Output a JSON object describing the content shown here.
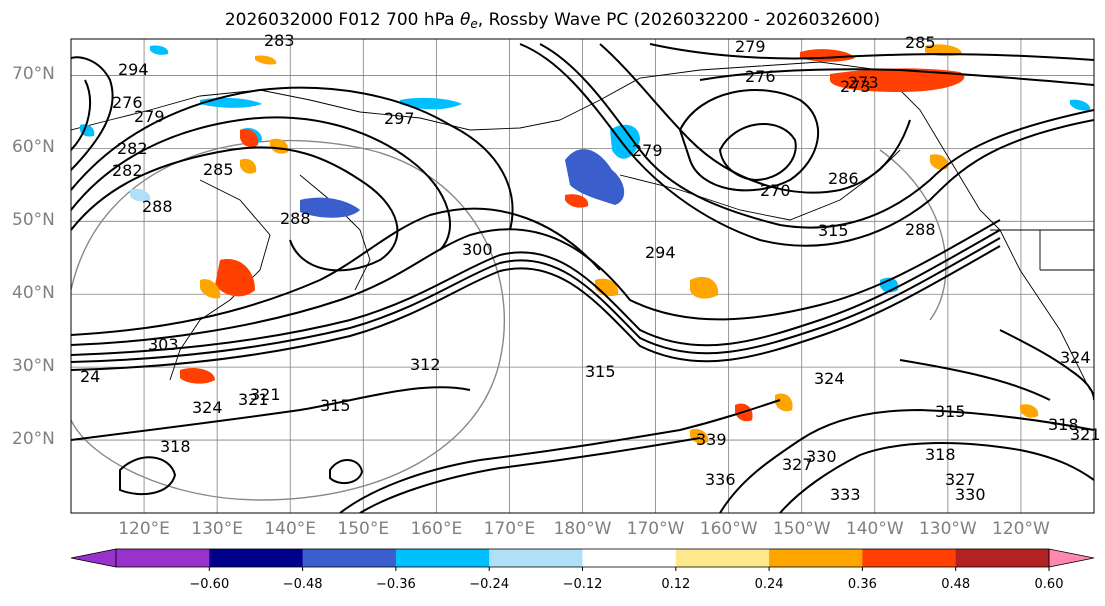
{
  "title": {
    "prefix": "2026032000 F012 700 hPa ",
    "symbol": "θ",
    "subscript": "e",
    "suffix": ", Rossby Wave PC (2026032200 - 2026032600)"
  },
  "map": {
    "projection": "cylindrical",
    "lat_range": [
      10,
      75
    ],
    "lon_range": [
      110,
      250
    ],
    "lat_labels": [
      "70°N",
      "60°N",
      "50°N",
      "40°N",
      "30°N",
      "20°N"
    ],
    "lon_labels": [
      "120°E",
      "130°E",
      "140°E",
      "150°E",
      "160°E",
      "170°E",
      "180°W",
      "170°W",
      "160°W",
      "150°W",
      "140°W",
      "130°W",
      "120°W"
    ],
    "grid": true,
    "contour_field": "700 hPa theta-e",
    "contour_labels": [
      "279",
      "276",
      "273",
      "273",
      "285",
      "297",
      "288",
      "288",
      "282",
      "285",
      "270",
      "294",
      "300",
      "303",
      "312",
      "315",
      "315",
      "324",
      "321",
      "321",
      "318",
      "318",
      "315",
      "315",
      "324",
      "318",
      "327",
      "330",
      "333",
      "336",
      "339",
      "330",
      "321",
      "327",
      "324",
      "24",
      "276",
      "279",
      "282",
      "288",
      "283",
      "286",
      "279",
      "294"
    ],
    "colors": {
      "contour": "#000000",
      "grid": "#808080",
      "coast": "#000000"
    }
  },
  "colorbar": {
    "ticks": [
      "−0.60",
      "−0.48",
      "−0.36",
      "−0.24",
      "−0.12",
      "0.12",
      "0.24",
      "0.36",
      "0.48",
      "0.60"
    ],
    "colors": [
      "#9932cc",
      "#00008b",
      "#3a5fcd",
      "#00bfff",
      "#b0e0f8",
      "#ffffff",
      "#fee88b",
      "#ffa500",
      "#ff4000",
      "#b22222",
      "#ff88b0",
      "#ff88b0"
    ],
    "extend": "both"
  }
}
